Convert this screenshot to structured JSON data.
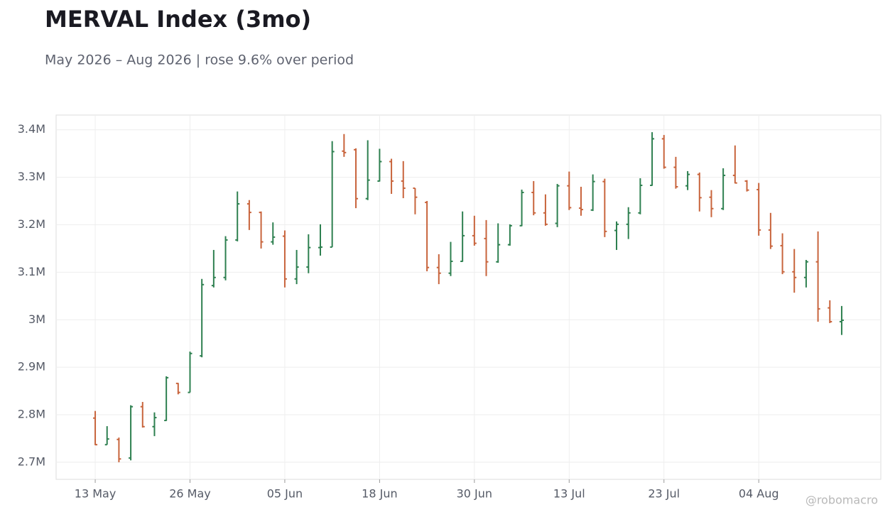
{
  "chart_data": {
    "type": "ohlc",
    "title": "MERVAL Index (3mo)",
    "subtitle": "May 2026 – Aug 2026 | rose 9.6% over period",
    "credit": "@robomacro",
    "categories": [
      "13 May",
      null,
      null,
      null,
      null,
      null,
      null,
      null,
      "26 May",
      null,
      null,
      null,
      null,
      null,
      null,
      null,
      "05 Jun",
      null,
      null,
      null,
      null,
      null,
      null,
      null,
      "18 Jun",
      null,
      null,
      null,
      null,
      null,
      null,
      null,
      "30 Jun",
      null,
      null,
      null,
      null,
      null,
      null,
      null,
      "13 Jul",
      null,
      null,
      null,
      null,
      null,
      null,
      null,
      "23 Jul",
      null,
      null,
      null,
      null,
      null,
      null,
      null,
      "04 Aug",
      null,
      null,
      null,
      null,
      null,
      null,
      null
    ],
    "open": [
      2793000,
      2737000,
      2748000,
      2709000,
      2817000,
      2775000,
      2788000,
      2866000,
      2847000,
      2924000,
      3072000,
      3089000,
      3168000,
      3244000,
      3226000,
      3164000,
      3176000,
      3086000,
      3111000,
      3152000,
      3153000,
      3355000,
      3358000,
      3255000,
      3292000,
      3333000,
      3292000,
      3277000,
      3247000,
      3110000,
      3098000,
      3123000,
      3177000,
      3171000,
      3122000,
      3158000,
      3198000,
      3268000,
      3225000,
      3203000,
      3282000,
      3235000,
      3231000,
      3291000,
      3188000,
      3201000,
      3225000,
      3283000,
      3381000,
      3321000,
      3282000,
      3306000,
      3258000,
      3234000,
      3304000,
      3292000,
      3274000,
      3189000,
      3156000,
      3101000,
      3089000,
      3122000,
      3025000,
      2996000
    ],
    "high": [
      2808000,
      2776000,
      2752000,
      2820000,
      2827000,
      2805000,
      2881000,
      2867000,
      2933000,
      3086000,
      3147000,
      3176000,
      3270000,
      3252000,
      3228000,
      3205000,
      3188000,
      3147000,
      3180000,
      3201000,
      3376000,
      3391000,
      3361000,
      3378000,
      3360000,
      3339000,
      3334000,
      3277000,
      3250000,
      3138000,
      3164000,
      3228000,
      3219000,
      3210000,
      3203000,
      3201000,
      3274000,
      3292000,
      3264000,
      3286000,
      3312000,
      3280000,
      3306000,
      3297000,
      3207000,
      3237000,
      3298000,
      3395000,
      3389000,
      3343000,
      3313000,
      3310000,
      3273000,
      3319000,
      3367000,
      3294000,
      3288000,
      3225000,
      3182000,
      3149000,
      3126000,
      3186000,
      3041000,
      3029000
    ],
    "low": [
      2736000,
      2737000,
      2700000,
      2704000,
      2773000,
      2755000,
      2787000,
      2843000,
      2847000,
      2921000,
      3068000,
      3083000,
      3165000,
      3189000,
      3150000,
      3158000,
      3068000,
      3075000,
      3098000,
      3135000,
      3153000,
      3343000,
      3235000,
      3252000,
      3291000,
      3265000,
      3256000,
      3222000,
      3102000,
      3075000,
      3092000,
      3122000,
      3156000,
      3092000,
      3120000,
      3156000,
      3197000,
      3220000,
      3198000,
      3195000,
      3231000,
      3219000,
      3229000,
      3174000,
      3147000,
      3170000,
      3222000,
      3282000,
      3318000,
      3276000,
      3273000,
      3228000,
      3216000,
      3231000,
      3287000,
      3270000,
      3177000,
      3149000,
      3096000,
      3057000,
      3068000,
      2996000,
      2993000,
      2968000
    ],
    "close": [
      2737000,
      2749000,
      2707000,
      2817000,
      2775000,
      2794000,
      2878000,
      2847000,
      2929000,
      3074000,
      3089000,
      3168000,
      3244000,
      3226000,
      3164000,
      3174000,
      3086000,
      3111000,
      3152000,
      3153000,
      3354000,
      3352000,
      3255000,
      3294000,
      3333000,
      3292000,
      3277000,
      3258000,
      3110000,
      3098000,
      3123000,
      3177000,
      3161000,
      3122000,
      3158000,
      3198000,
      3268000,
      3225000,
      3201000,
      3282000,
      3236000,
      3232000,
      3291000,
      3186000,
      3201000,
      3225000,
      3283000,
      3381000,
      3321000,
      3280000,
      3306000,
      3257000,
      3234000,
      3304000,
      3288000,
      3273000,
      3189000,
      3155000,
      3101000,
      3089000,
      3122000,
      3023000,
      2996000,
      2999000
    ],
    "up_color": "#2e8050",
    "down_color": "#c8643c",
    "ylim": [
      2664000,
      3431000
    ],
    "yticks": [
      {
        "value": 2700000,
        "label": "2.7M"
      },
      {
        "value": 2800000,
        "label": "2.8M"
      },
      {
        "value": 2900000,
        "label": "2.9M"
      },
      {
        "value": 3000000,
        "label": "3M"
      },
      {
        "value": 3100000,
        "label": "3.1M"
      },
      {
        "value": 3200000,
        "label": "3.2M"
      },
      {
        "value": 3300000,
        "label": "3.3M"
      },
      {
        "value": 3400000,
        "label": "3.4M"
      }
    ],
    "grid": true
  }
}
